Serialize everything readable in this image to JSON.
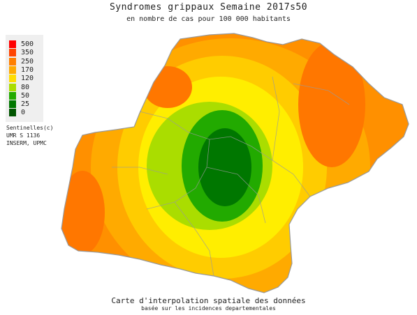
{
  "title": "Syndromes grippaux Semaine 2017s50",
  "subtitle": "en nombre de cas pour 100 000 habitants",
  "legend": [
    {
      "label": "500",
      "color": "#ff0000"
    },
    {
      "label": "350",
      "color": "#ff4400"
    },
    {
      "label": "250",
      "color": "#ff7f00"
    },
    {
      "label": "170",
      "color": "#ffaa00"
    },
    {
      "label": "120",
      "color": "#ffdd00"
    },
    {
      "label": "80",
      "color": "#aadd00"
    },
    {
      "label": "50",
      "color": "#22aa00"
    },
    {
      "label": "25",
      "color": "#007700"
    },
    {
      "label": "0",
      "color": "#005500"
    }
  ],
  "credits": [
    "Sentinelles(c)",
    "UMR S 1136",
    "INSERM, UPMC"
  ],
  "caption": "Carte d'interpolation spatiale des données",
  "caption_sub": "basée sur les incidences departementales"
}
